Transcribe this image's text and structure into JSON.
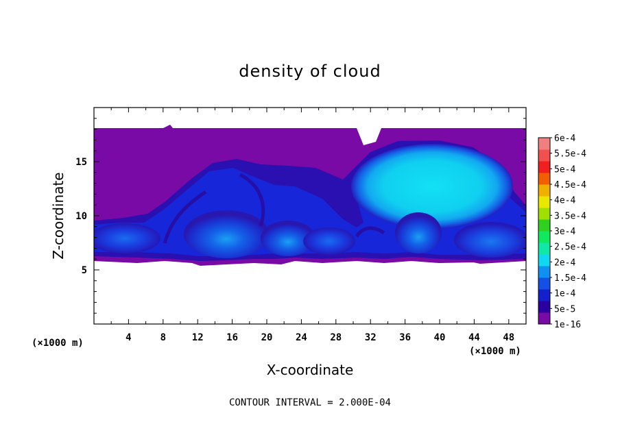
{
  "chart_data": {
    "type": "heatmap",
    "title": "density of cloud",
    "xlabel": "X-coordinate",
    "ylabel": "Z-coordinate",
    "x_unit_label": "(×1000 m)",
    "y_unit_label": "(×1000 m)",
    "xlim": [
      0,
      50
    ],
    "ylim": [
      0,
      20
    ],
    "x_ticks": [
      4,
      8,
      12,
      16,
      20,
      24,
      28,
      32,
      36,
      40,
      44,
      48
    ],
    "y_ticks": [
      5,
      10,
      15
    ],
    "colorbar": {
      "labels": [
        "1e-16",
        "5e-5",
        "1e-4",
        "1.5e-4",
        "2e-4",
        "2.5e-4",
        "3e-4",
        "3.5e-4",
        "4e-4",
        "4.5e-4",
        "5e-4",
        "5.5e-4",
        "6e-4"
      ],
      "colors": [
        "#7a0aa6",
        "#2a00a0",
        "#1420cc",
        "#1450e6",
        "#1090f0",
        "#10d8f0",
        "#10e8a8",
        "#10e860",
        "#30d020",
        "#a0e000",
        "#e8e800",
        "#f0b000",
        "#f06000",
        "#f02020",
        "#f05050",
        "#f08080"
      ]
    },
    "contour_interval_text": "CONTOUR INTERVAL = 2.000E-04",
    "cloud_field": {
      "base_z": 5.8,
      "top_z": 18.0,
      "description_values": [
        {
          "x": 2,
          "z": 8.0,
          "value": 0.0001
        },
        {
          "x": 15,
          "z": 7.0,
          "value": 0.00015
        },
        {
          "x": 21,
          "z": 7.0,
          "value": 0.00015
        },
        {
          "x": 25,
          "z": 7.0,
          "value": 0.0001
        },
        {
          "x": 37,
          "z": 12.5,
          "value": 0.0002
        },
        {
          "x": 45,
          "z": 8.0,
          "value": 0.00015
        },
        {
          "x": 25,
          "z": 16.5,
          "value": 1e-16
        }
      ]
    },
    "grid": false,
    "legend": "right-colorbar"
  }
}
